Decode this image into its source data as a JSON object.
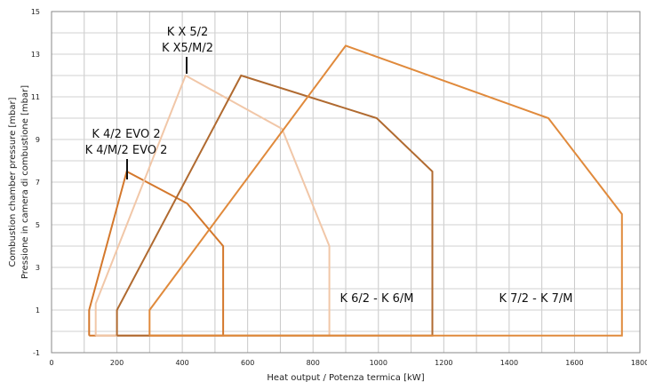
{
  "chart_data": {
    "type": "line",
    "xlabel": "Heat output / Potenza termica [kW]",
    "ylabel": [
      "Combustion chamber pressure [mbar]",
      "Pressione in camera di combustione [mbar]"
    ],
    "xlim": [
      0,
      1800
    ],
    "ylim": [
      -1,
      15
    ],
    "x_ticks": [
      "0",
      "200",
      "400",
      "600",
      "800",
      "1000",
      "1200",
      "1400",
      "1600",
      "1800"
    ],
    "y_ticks": [
      "-1",
      "1",
      "3",
      "5",
      "7",
      "9",
      "11",
      "13",
      "15"
    ],
    "grid": true,
    "series": [
      {
        "color": "#d4782c",
        "points": [
          [
            115,
            -0.2
          ],
          [
            115,
            1
          ],
          [
            230,
            7.5
          ],
          [
            415,
            6
          ],
          [
            525,
            4
          ],
          [
            525,
            -0.2
          ],
          [
            115,
            -0.2
          ]
        ]
      },
      {
        "color": "#f1c7a8",
        "points": [
          [
            135,
            -0.2
          ],
          [
            135,
            1.3
          ],
          [
            410,
            12
          ],
          [
            705,
            9.5
          ],
          [
            850,
            4
          ],
          [
            850,
            -0.2
          ],
          [
            135,
            -0.2
          ]
        ]
      },
      {
        "color": "#b06a30",
        "points": [
          [
            200,
            -0.2
          ],
          [
            200,
            1
          ],
          [
            580,
            12
          ],
          [
            995,
            10
          ],
          [
            1165,
            7.5
          ],
          [
            1165,
            -0.2
          ],
          [
            200,
            -0.2
          ]
        ]
      },
      {
        "color": "#e08a3c",
        "points": [
          [
            300,
            -0.2
          ],
          [
            300,
            1
          ],
          [
            900,
            13.4
          ],
          [
            1520,
            10
          ],
          [
            1745,
            5.5
          ],
          [
            1745,
            -0.2
          ],
          [
            300,
            -0.2
          ]
        ]
      }
    ],
    "annotations": [
      {
        "lines": [
          "K 4/2 EVO 2",
          "K 4/M/2 EVO 2"
        ],
        "pointer": [
          230,
          7.5
        ]
      },
      {
        "lines": [
          "K X 5/2",
          "K X5/M/2"
        ],
        "pointer": [
          415,
          11.5
        ]
      },
      {
        "lines": [
          "K 6/2 - K 6/M"
        ]
      },
      {
        "lines": [
          "K 7/2 - K 7/M"
        ]
      }
    ]
  }
}
